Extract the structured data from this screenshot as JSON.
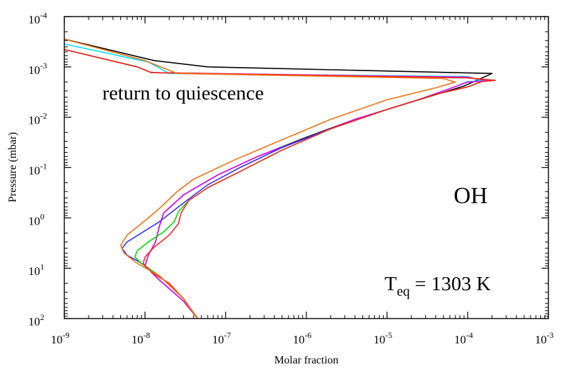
{
  "chart_data": {
    "type": "line",
    "x_scale": "log",
    "y_scale": "log",
    "y_inverted": true,
    "xlim": [
      1e-09,
      0.001
    ],
    "ylim": [
      0.0001,
      100
    ],
    "xlabel": "Molar fraction",
    "ylabel": "Pressure (mbar)",
    "x_ticks": [
      {
        "base": "10",
        "exp": "-9",
        "value": 1e-09
      },
      {
        "base": "10",
        "exp": "-8",
        "value": 1e-08
      },
      {
        "base": "10",
        "exp": "-7",
        "value": 1e-07
      },
      {
        "base": "10",
        "exp": "-6",
        "value": 1e-06
      },
      {
        "base": "10",
        "exp": "-5",
        "value": 1e-05
      },
      {
        "base": "10",
        "exp": "-4",
        "value": 0.0001
      },
      {
        "base": "10",
        "exp": "-3",
        "value": 0.001
      }
    ],
    "y_ticks": [
      {
        "base": "10",
        "exp": "-4",
        "value": 0.0001
      },
      {
        "base": "10",
        "exp": "-3",
        "value": 0.001
      },
      {
        "base": "10",
        "exp": "-2",
        "value": 0.01
      },
      {
        "base": "10",
        "exp": "-1",
        "value": 0.1
      },
      {
        "base": "10",
        "exp": "0",
        "value": 1
      },
      {
        "base": "10",
        "exp": "1",
        "value": 10
      },
      {
        "base": "10",
        "exp": "2",
        "value": 100
      }
    ],
    "annotations": {
      "species": "OH",
      "teq_main": "T",
      "teq_sub": "eq",
      "teq_rest": " = 1303 K",
      "note": "return to quiescence"
    },
    "series": [
      {
        "color": "#000000",
        "points": [
          [
            1e-09,
            0.00028
          ],
          [
            1.3e-08,
            0.00075
          ],
          [
            6e-08,
            0.001
          ],
          [
            0.0002,
            0.00135
          ],
          [
            9e-05,
            0.0024
          ],
          [
            2e-05,
            0.005
          ],
          [
            4e-06,
            0.011
          ],
          [
            1e-06,
            0.025
          ],
          [
            2.5e-07,
            0.06
          ],
          [
            8e-08,
            0.14
          ],
          [
            3e-08,
            0.35
          ],
          [
            1.7e-08,
            0.8
          ],
          [
            1.5e-08,
            1.5
          ],
          [
            1.35e-08,
            3
          ],
          [
            1.1e-08,
            5.5
          ],
          [
            1e-08,
            9
          ],
          [
            1.5e-08,
            17
          ],
          [
            3e-08,
            45
          ],
          [
            4.5e-08,
            100
          ]
        ]
      },
      {
        "color": "#00e0ff",
        "points": [
          [
            1e-09,
            0.00035
          ],
          [
            1.1e-08,
            0.0008
          ],
          [
            2e-08,
            0.00135
          ],
          [
            0.0001,
            0.00155
          ],
          [
            0.00015,
            0.0019
          ],
          [
            0.0001,
            0.00195
          ],
          [
            6e-05,
            0.0027
          ],
          [
            2e-05,
            0.005
          ],
          [
            4e-06,
            0.011
          ],
          [
            1e-06,
            0.026
          ],
          [
            2.5e-07,
            0.06
          ],
          [
            8e-08,
            0.14
          ],
          [
            3e-08,
            0.35
          ],
          [
            1.7e-08,
            0.8
          ],
          [
            1.5e-08,
            1.5
          ],
          [
            1.35e-08,
            3
          ],
          [
            1.1e-08,
            5.5
          ],
          [
            1e-08,
            9
          ],
          [
            1.5e-08,
            17
          ],
          [
            3e-08,
            45
          ],
          [
            4.5e-08,
            100
          ]
        ]
      },
      {
        "color": "#ee00ee",
        "points": [
          [
            1e-09,
            0.00045
          ],
          [
            8e-09,
            0.001
          ],
          [
            1.2e-08,
            0.0013
          ],
          [
            0.0001,
            0.0016
          ],
          [
            0.00018,
            0.0019
          ],
          [
            0.0001,
            0.002
          ],
          [
            6e-05,
            0.0027
          ],
          [
            2e-05,
            0.005
          ],
          [
            4e-06,
            0.011
          ],
          [
            1e-06,
            0.026
          ],
          [
            2.5e-07,
            0.06
          ],
          [
            8e-08,
            0.14
          ],
          [
            3e-08,
            0.35
          ],
          [
            1.7e-08,
            0.8
          ],
          [
            1.5e-08,
            1.5
          ],
          [
            1.35e-08,
            3
          ],
          [
            1.1e-08,
            5.5
          ],
          [
            1e-08,
            9
          ],
          [
            1.5e-08,
            17
          ],
          [
            3e-08,
            45
          ],
          [
            4.5e-08,
            100
          ]
        ]
      },
      {
        "color": "#3030ff",
        "points": [
          [
            1e-09,
            0.00045
          ],
          [
            8e-09,
            0.001
          ],
          [
            1.2e-08,
            0.0013
          ],
          [
            0.0001,
            0.00165
          ],
          [
            0.00022,
            0.00185
          ],
          [
            0.00015,
            0.00195
          ],
          [
            0.0001,
            0.0025
          ],
          [
            4e-05,
            0.0035
          ],
          [
            1e-05,
            0.007
          ],
          [
            2e-06,
            0.017
          ],
          [
            5e-07,
            0.04
          ],
          [
            1.5e-07,
            0.1
          ],
          [
            6e-08,
            0.22
          ],
          [
            3.5e-08,
            0.42
          ],
          [
            2.3e-08,
            0.7
          ],
          [
            1.5e-08,
            1.2
          ],
          [
            9e-09,
            2
          ],
          [
            6e-09,
            3
          ],
          [
            5.2e-09,
            4
          ],
          [
            6e-09,
            5.5
          ],
          [
            8.5e-09,
            7.5
          ],
          [
            1.5e-08,
            14
          ],
          [
            3e-08,
            40
          ],
          [
            4.5e-08,
            100
          ]
        ]
      },
      {
        "color": "#00dd00",
        "points": [
          [
            1e-09,
            0.00045
          ],
          [
            8e-09,
            0.001
          ],
          [
            1.2e-08,
            0.0013
          ],
          [
            0.0001,
            0.00165
          ],
          [
            0.00022,
            0.00185
          ],
          [
            0.00015,
            0.00195
          ],
          [
            0.0001,
            0.0025
          ],
          [
            4e-05,
            0.0035
          ],
          [
            1e-05,
            0.007
          ],
          [
            2e-06,
            0.017
          ],
          [
            5e-07,
            0.045
          ],
          [
            1.5e-07,
            0.12
          ],
          [
            6e-08,
            0.25
          ],
          [
            3.5e-08,
            0.45
          ],
          [
            2.6e-08,
            0.75
          ],
          [
            2.3e-08,
            1.2
          ],
          [
            1.7e-08,
            1.9
          ],
          [
            1.1e-08,
            3
          ],
          [
            8e-09,
            4.5
          ],
          [
            7.5e-09,
            6
          ],
          [
            9e-09,
            8
          ],
          [
            1.5e-08,
            14
          ],
          [
            3e-08,
            40
          ],
          [
            4.5e-08,
            100
          ]
        ]
      },
      {
        "color": "#ff2020",
        "points": [
          [
            1e-09,
            0.00045
          ],
          [
            8e-09,
            0.001
          ],
          [
            1.2e-08,
            0.0013
          ],
          [
            0.0001,
            0.00165
          ],
          [
            0.00022,
            0.00185
          ],
          [
            0.00015,
            0.00195
          ],
          [
            0.0001,
            0.0025
          ],
          [
            4e-05,
            0.0035
          ],
          [
            1e-05,
            0.007
          ],
          [
            2e-06,
            0.017
          ],
          [
            5e-07,
            0.045
          ],
          [
            1.5e-07,
            0.12
          ],
          [
            6e-08,
            0.25
          ],
          [
            3.5e-08,
            0.45
          ],
          [
            2.8e-08,
            0.8
          ],
          [
            2.6e-08,
            1.3
          ],
          [
            2e-08,
            2.2
          ],
          [
            1.3e-08,
            3.8
          ],
          [
            1e-08,
            6
          ],
          [
            9.5e-09,
            8
          ],
          [
            1.2e-08,
            12
          ],
          [
            2e-08,
            20
          ],
          [
            3e-08,
            40
          ],
          [
            4.5e-08,
            100
          ]
        ]
      },
      {
        "color": "#f07010",
        "points": [
          [
            1e-09,
            0.00028
          ],
          [
            1e-08,
            0.00075
          ],
          [
            2.5e-08,
            0.00135
          ],
          [
            5e-05,
            0.0017
          ],
          [
            7e-05,
            0.002
          ],
          [
            4e-05,
            0.0026
          ],
          [
            1e-05,
            0.0045
          ],
          [
            2e-06,
            0.011
          ],
          [
            5e-07,
            0.028
          ],
          [
            1.3e-07,
            0.07
          ],
          [
            4e-08,
            0.17
          ],
          [
            2.5e-08,
            0.3
          ],
          [
            1.8e-08,
            0.5
          ],
          [
            1.3e-08,
            0.8
          ],
          [
            9e-09,
            1.3
          ],
          [
            6e-09,
            2.2
          ],
          [
            5e-09,
            3.5
          ],
          [
            5.5e-09,
            5
          ],
          [
            8e-09,
            8
          ],
          [
            1.5e-08,
            14
          ],
          [
            3e-08,
            40
          ],
          [
            4.5e-08,
            100
          ]
        ]
      }
    ]
  }
}
